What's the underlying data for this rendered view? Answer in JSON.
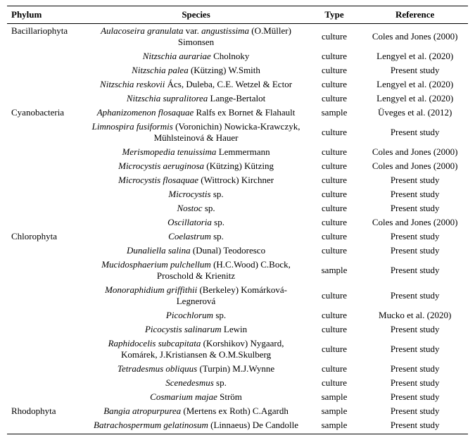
{
  "headers": {
    "phylum": "Phylum",
    "species": "Species",
    "type": "Type",
    "reference": "Reference"
  },
  "rows": [
    {
      "phylum": "Bacillariophyta",
      "species_italic": "Aulacoseira granulata",
      "var_word": "var.",
      "var_italic": "angustissima",
      "authority": "(O.Müller) Simonsen",
      "type": "culture",
      "reference": "Coles and Jones (2000)"
    },
    {
      "phylum": "",
      "species_italic": "Nitzschia aurariae",
      "authority": "Cholnoky",
      "type": "culture",
      "reference": "Lengyel et al. (2020)"
    },
    {
      "phylum": "",
      "species_italic": "Nitzschia palea",
      "authority": "(Kützing) W.Smith",
      "type": "culture",
      "reference": "Present study"
    },
    {
      "phylum": "",
      "species_italic": "Nitzschia reskovii",
      "authority": "Ács, Duleba, C.E. Wetzel & Ector",
      "type": "culture",
      "reference": "Lengyel et al. (2020)"
    },
    {
      "phylum": "",
      "species_italic": "Nitzschia supralitorea",
      "authority": "Lange-Bertalot",
      "type": "culture",
      "reference": "Lengyel et al. (2020)"
    },
    {
      "phylum": "Cyanobacteria",
      "species_italic": "Aphanizomenon flosaquae",
      "authority": "Ralfs ex Bornet & Flahault",
      "type": "sample",
      "reference": "Üveges et al. (2012)"
    },
    {
      "phylum": "",
      "species_italic": "Limnospira fusiformis",
      "authority": "(Voronichin) Nowicka-Krawczyk, Mühlsteinová & Hauer",
      "type": "culture",
      "reference": "Present study"
    },
    {
      "phylum": "",
      "species_italic": "Merismopedia tenuissima",
      "authority": "Lemmermann",
      "type": "culture",
      "reference": "Coles and Jones (2000)"
    },
    {
      "phylum": "",
      "species_italic": "Microcystis aeruginosa",
      "authority": "(Kützing) Kützing",
      "type": "culture",
      "reference": "Coles and Jones (2000)"
    },
    {
      "phylum": "",
      "species_italic": "Microcystis flosaquae",
      "authority": "(Wittrock) Kirchner",
      "type": "culture",
      "reference": "Present study"
    },
    {
      "phylum": "",
      "species_italic": "Microcystis",
      "sp": "sp.",
      "authority": "",
      "type": "culture",
      "reference": "Present study"
    },
    {
      "phylum": "",
      "species_italic": "Nostoc",
      "sp": "sp.",
      "authority": "",
      "type": "culture",
      "reference": "Present study"
    },
    {
      "phylum": "",
      "species_italic": "Oscillatoria",
      "sp": "sp.",
      "authority": "",
      "type": "culture",
      "reference": "Coles and Jones (2000)"
    },
    {
      "phylum": "Chlorophyta",
      "species_italic": "Coelastrum",
      "sp": "sp.",
      "authority": "",
      "type": "culture",
      "reference": "Present study"
    },
    {
      "phylum": "",
      "species_italic": "Dunaliella salina",
      "authority": "(Dunal) Teodoresco",
      "type": "culture",
      "reference": "Present study"
    },
    {
      "phylum": "",
      "species_italic": "Mucidosphaerium pulchellum",
      "authority": "(H.C.Wood) C.Bock, Proschold & Krienitz",
      "type": "sample",
      "reference": "Present study"
    },
    {
      "phylum": "",
      "species_italic": "Monoraphidium griffithii",
      "authority": "(Berkeley) Komárková-Legnerová",
      "type": "culture",
      "reference": "Present study"
    },
    {
      "phylum": "",
      "species_italic": "Picochlorum",
      "sp": "sp.",
      "authority": "",
      "type": "culture",
      "reference": "Mucko et al. (2020)"
    },
    {
      "phylum": "",
      "species_italic": "Picocystis salinarum",
      "authority": "Lewin",
      "type": "culture",
      "reference": "Present study"
    },
    {
      "phylum": "",
      "species_italic": "Raphidocelis subcapitata",
      "authority": "(Korshikov) Nygaard, Komárek, J.Kristiansen & O.M.Skulberg",
      "type": "culture",
      "reference": "Present study"
    },
    {
      "phylum": "",
      "species_italic": "Tetradesmus obliquus",
      "authority": "(Turpin) M.J.Wynne",
      "type": "culture",
      "reference": "Present study"
    },
    {
      "phylum": "",
      "species_italic": "Scenedesmus",
      "sp": "sp.",
      "authority": "",
      "type": "culture",
      "reference": "Present study"
    },
    {
      "phylum": "",
      "species_italic": "Cosmarium majae",
      "authority": "Ström",
      "type": "sample",
      "reference": "Present study"
    },
    {
      "phylum": "Rhodophyta",
      "species_italic": "Bangia atropurpurea",
      "authority": "(Mertens ex Roth) C.Agardh",
      "type": "sample",
      "reference": "Present study"
    },
    {
      "phylum": "",
      "species_italic": "Batrachospermum gelatinosum",
      "authority": "(Linnaeus) De Candolle",
      "type": "sample",
      "reference": "Present study"
    }
  ]
}
